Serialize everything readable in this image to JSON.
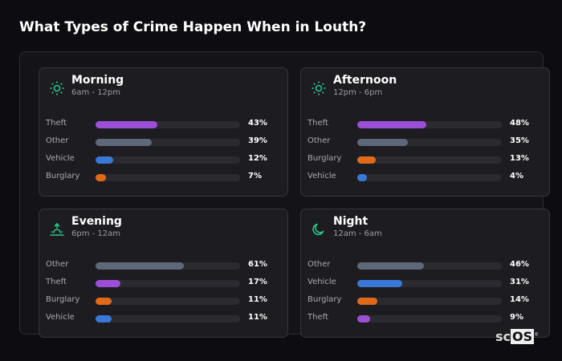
{
  "title": "What Types of Crime Happen When in Louth?",
  "colors": {
    "Theft": "#9b4fd6",
    "Other": "#5f6878",
    "Vehicle": "#3a78d8",
    "Burglary": "#e06a1a",
    "icon": "#2bc48a"
  },
  "chart_data": [
    {
      "type": "bar",
      "title": "Morning",
      "subtitle": "6am - 12pm",
      "icon": "sun-icon",
      "categories": [
        "Theft",
        "Other",
        "Vehicle",
        "Burglary"
      ],
      "values": [
        43,
        39,
        12,
        7
      ],
      "labels": [
        "43%",
        "39%",
        "12%",
        "7%"
      ]
    },
    {
      "type": "bar",
      "title": "Afternoon",
      "subtitle": "12pm - 6pm",
      "icon": "sun-icon",
      "categories": [
        "Theft",
        "Other",
        "Burglary",
        "Vehicle"
      ],
      "values": [
        48,
        35,
        13,
        4
      ],
      "labels": [
        "48%",
        "35%",
        "13%",
        "4%"
      ]
    },
    {
      "type": "bar",
      "title": "Evening",
      "subtitle": "6pm - 12am",
      "icon": "sunset-icon",
      "categories": [
        "Other",
        "Theft",
        "Burglary",
        "Vehicle"
      ],
      "values": [
        61,
        17,
        11,
        11
      ],
      "labels": [
        "61%",
        "17%",
        "11%",
        "11%"
      ]
    },
    {
      "type": "bar",
      "title": "Night",
      "subtitle": "12am - 6am",
      "icon": "moon-icon",
      "categories": [
        "Other",
        "Vehicle",
        "Burglary",
        "Theft"
      ],
      "values": [
        46,
        31,
        14,
        9
      ],
      "labels": [
        "46%",
        "31%",
        "14%",
        "9%"
      ]
    }
  ],
  "logo": {
    "a": "sc",
    "b": "OS",
    "mark": "®"
  }
}
